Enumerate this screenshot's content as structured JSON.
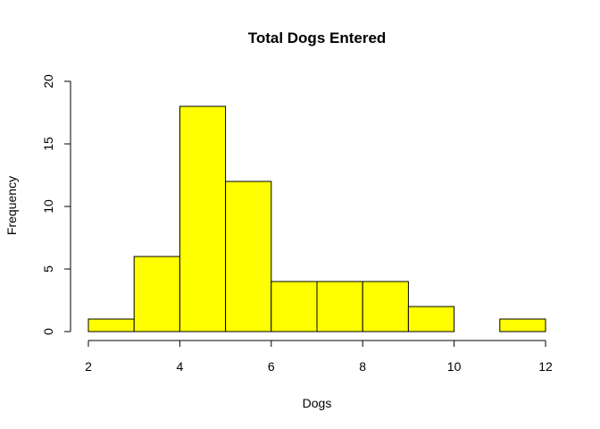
{
  "chart_data": {
    "type": "bar",
    "subtype": "histogram",
    "title": "Total Dogs Entered",
    "xlabel": "Dogs",
    "ylabel": "Frequency",
    "bin_edges": [
      2,
      3,
      4,
      5,
      6,
      7,
      8,
      9,
      10,
      11,
      12
    ],
    "values": [
      1,
      6,
      18,
      12,
      4,
      4,
      4,
      2,
      0,
      1
    ],
    "xlim": [
      2,
      12
    ],
    "ylim": [
      0,
      20
    ],
    "x_ticks": [
      2,
      4,
      6,
      8,
      10,
      12
    ],
    "y_ticks": [
      0,
      5,
      10,
      15,
      20
    ],
    "bar_color": "#ffff00",
    "grid": false,
    "legend": "none"
  }
}
